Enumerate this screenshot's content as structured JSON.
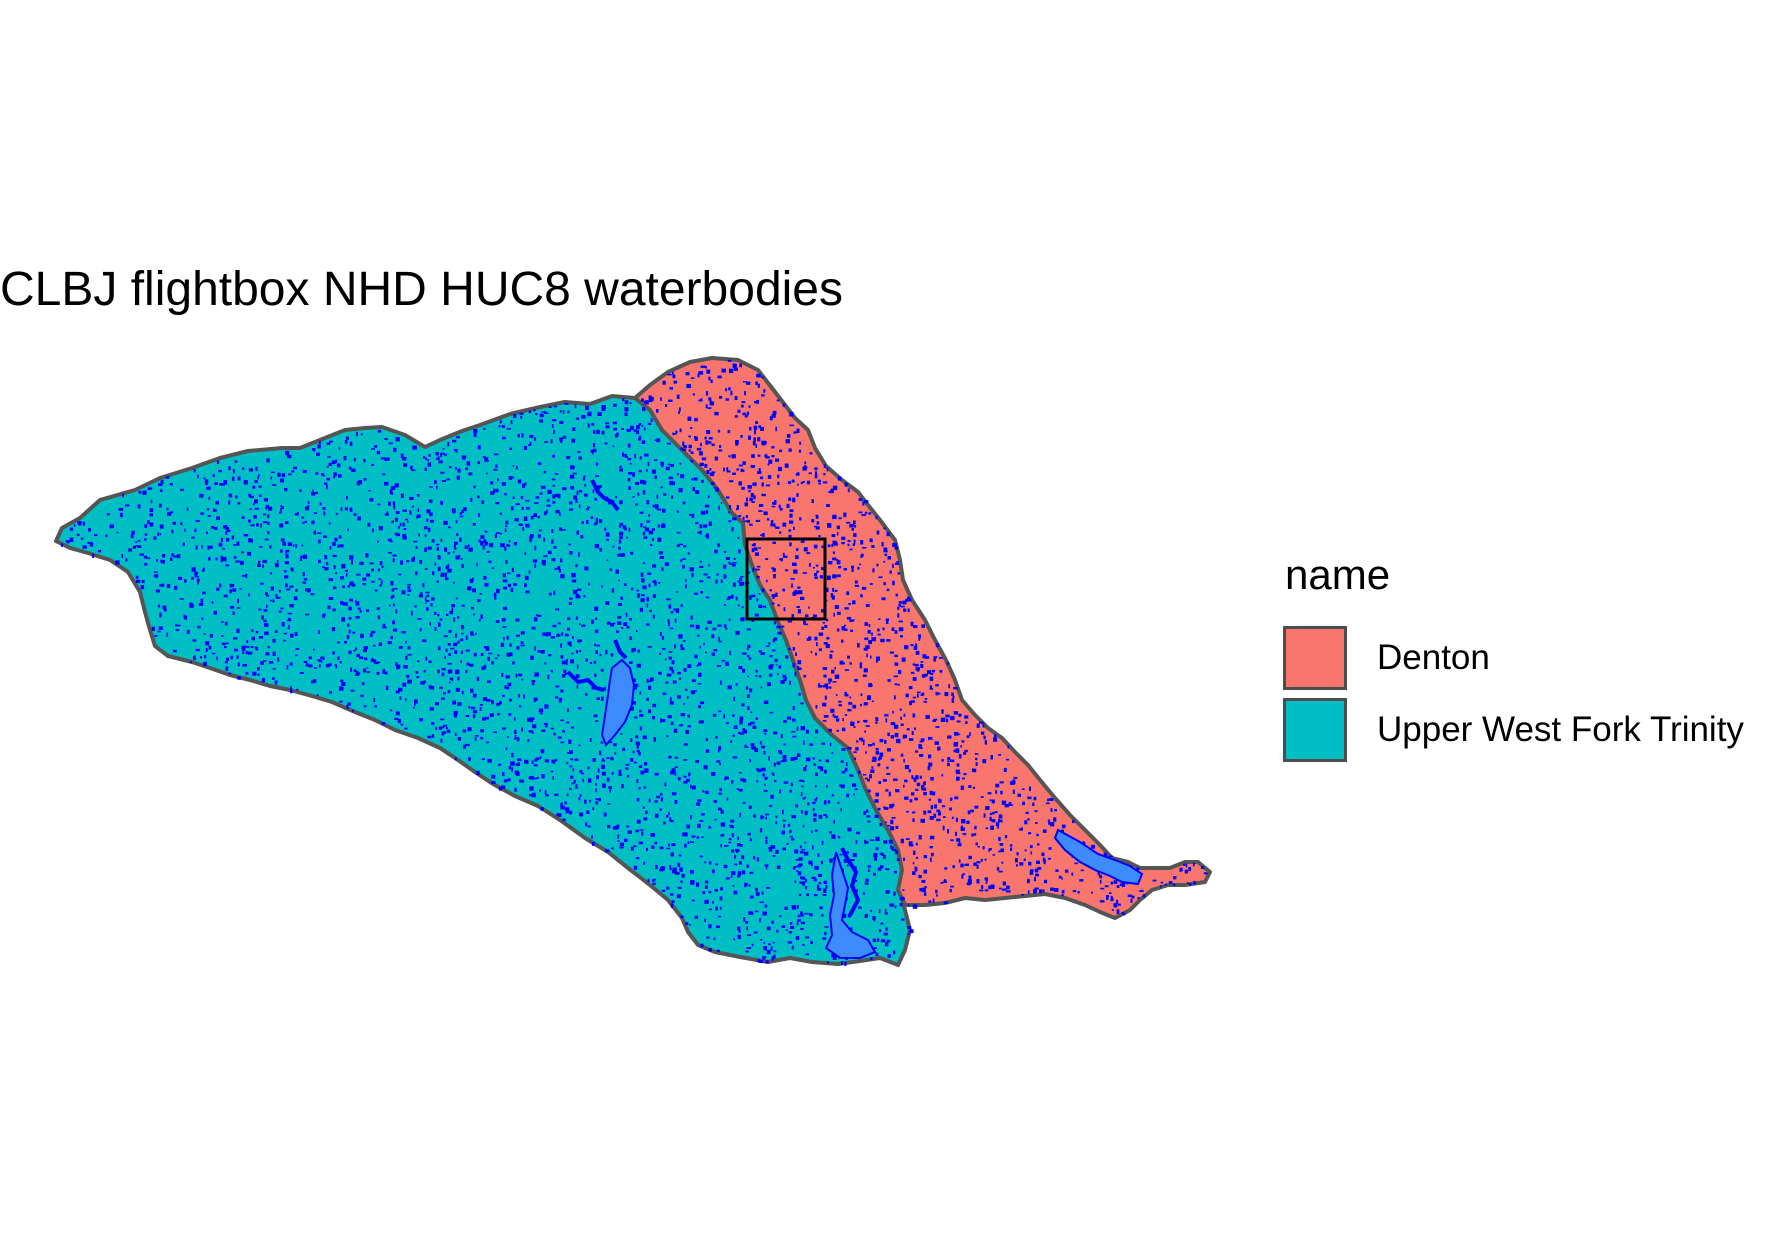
{
  "title": "CLBJ flightbox NHD HUC8 waterbodies",
  "legend": {
    "title": "name",
    "items": [
      {
        "label": "Denton",
        "color": "#F8766D"
      },
      {
        "label": "Upper West Fork Trinity",
        "color": "#00BFC4"
      }
    ]
  },
  "colors": {
    "background": "#ffffff",
    "boundary": "#555555",
    "waterbody_small": "#0000ff",
    "waterbody_large": "#3d8bff",
    "flightbox": "#000000"
  },
  "map": {
    "regions": [
      "Upper West Fork Trinity",
      "Denton"
    ],
    "layers": [
      "HUC8 watersheds",
      "NHD waterbodies",
      "flightbox"
    ]
  }
}
